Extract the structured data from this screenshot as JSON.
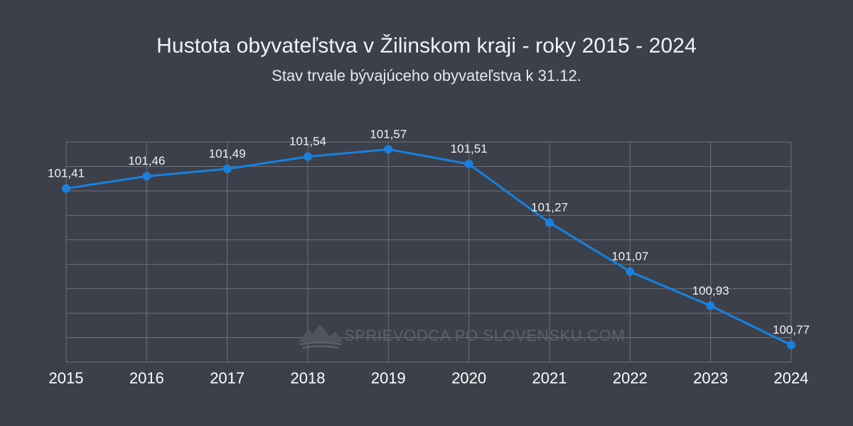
{
  "chart_data": {
    "type": "line",
    "title": "Hustota obyvateľstva  v Žilinskom kraji - roky 2015 - 2024",
    "subtitle": "Stav trvale bývajúceho obyvateľstva k 31.12.",
    "categories": [
      "2015",
      "2016",
      "2017",
      "2018",
      "2019",
      "2020",
      "2021",
      "2022",
      "2023",
      "2024"
    ],
    "series": [
      {
        "values": [
          101.41,
          101.46,
          101.49,
          101.54,
          101.57,
          101.51,
          101.27,
          101.07,
          100.93,
          100.77
        ],
        "labels": [
          "101,41",
          "101,46",
          "101,49",
          "101,54",
          "101,57",
          "101,51",
          "101,27",
          "101,07",
          "100,93",
          "100,77"
        ],
        "color": "#1a80d9"
      }
    ],
    "ylim": [
      100.7,
      101.6
    ],
    "grid": true,
    "watermark": "SPRIEVODCA PO SLOVENSKU.COM"
  },
  "colors": {
    "background": "#3c404b",
    "grid": "#6b707a",
    "line": "#1a80d9"
  }
}
